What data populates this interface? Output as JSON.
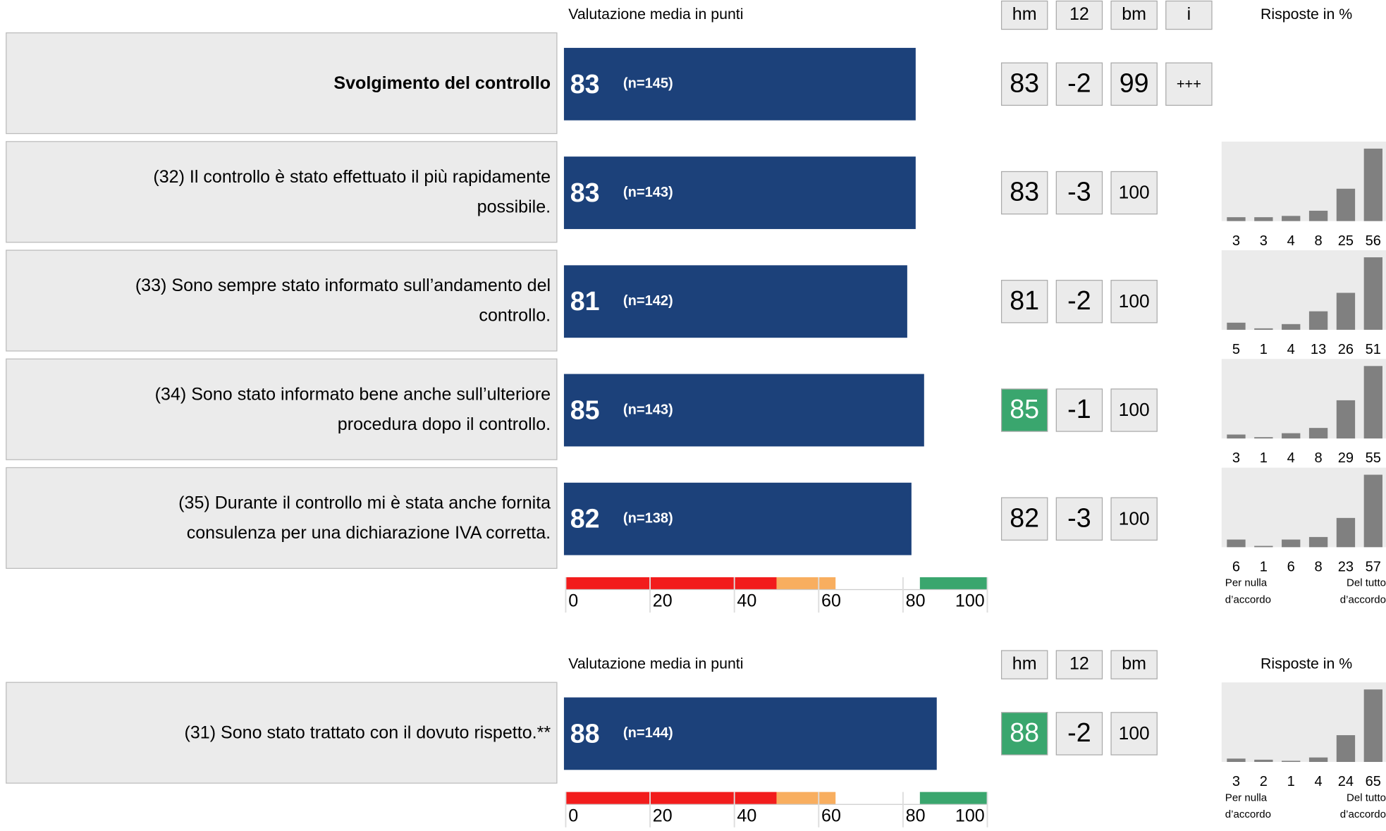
{
  "scale_title": "Valutazione media in punti",
  "responses_title": "Risposte in %",
  "xlim": [
    0,
    100
  ],
  "xticks": [
    0,
    20,
    40,
    60,
    80,
    100
  ],
  "bands": [
    {
      "from": 0,
      "to": 50,
      "color": "#f21c1c"
    },
    {
      "from": 50,
      "to": 64,
      "color": "#f8ae5f"
    },
    {
      "from": 84,
      "to": 100,
      "color": "#3aa66e"
    }
  ],
  "bar_color": "#1c417a",
  "highlight_color": "#3aa66e",
  "low_label": [
    "Per nulla",
    "d’accordo"
  ],
  "high_label": [
    "Del tutto",
    "d’accordo"
  ],
  "sections": [
    {
      "columns": [
        "hm",
        "12",
        "bm",
        "i"
      ],
      "rows": [
        {
          "label": [
            "Svolgimento del controllo"
          ],
          "bold": true,
          "score": 83,
          "n": "(n=145)",
          "hm": 83,
          "delta": -2,
          "bm": 99,
          "i": "+++"
        },
        {
          "label": [
            "(32) Il controllo è stato effettuato il più rapidamente",
            "possibile."
          ],
          "score": 83,
          "n": "(n=143)",
          "hm": 83,
          "delta": -3,
          "bm": 100,
          "responses": [
            3,
            3,
            4,
            8,
            25,
            56
          ]
        },
        {
          "label": [
            "(33) Sono sempre stato informato sull’andamento del",
            "controllo."
          ],
          "score": 81,
          "n": "(n=142)",
          "hm": 81,
          "delta": -2,
          "bm": 100,
          "responses": [
            5,
            1,
            4,
            13,
            26,
            51
          ]
        },
        {
          "label": [
            "(34) Sono stato informato bene anche sull’ulteriore",
            "procedura dopo il controllo."
          ],
          "score": 85,
          "n": "(n=143)",
          "hm": 85,
          "hm_highlight": true,
          "delta": -1,
          "bm": 100,
          "responses": [
            3,
            1,
            4,
            8,
            29,
            55
          ]
        },
        {
          "label": [
            "(35) Durante il controllo mi è stata anche fornita",
            "consulenza per una dichiarazione IVA corretta."
          ],
          "score": 82,
          "n": "(n=138)",
          "hm": 82,
          "delta": -3,
          "bm": 100,
          "responses": [
            6,
            1,
            6,
            8,
            23,
            57
          ]
        }
      ]
    },
    {
      "columns": [
        "hm",
        "12",
        "bm"
      ],
      "rows": [
        {
          "label": [
            "(31) Sono stato trattato con il dovuto rispetto.**"
          ],
          "score": 88,
          "n": "(n=144)",
          "hm": 88,
          "hm_highlight": true,
          "delta": -2,
          "bm": 100,
          "responses": [
            3,
            2,
            1,
            4,
            24,
            65
          ]
        }
      ]
    }
  ]
}
